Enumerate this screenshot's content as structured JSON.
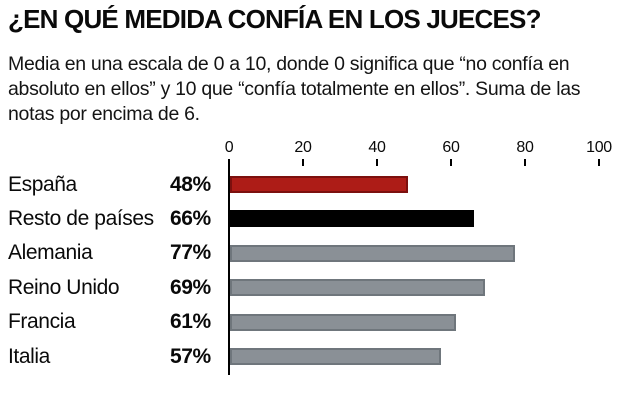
{
  "header": {
    "title": "¿EN QUÉ MEDIDA CONFÍA EN LOS JUECES?",
    "subtitle": "Media en una escala de 0 a 10, donde 0 significa que “no confía en absoluto en ellos” y 10 que “confía totalmente en ellos”. Suma de las notas por encima de 6."
  },
  "chart_data": {
    "type": "bar",
    "orientation": "horizontal",
    "title": "¿EN QUÉ MEDIDA CONFÍA EN LOS JUECES?",
    "categories": [
      "España",
      "Resto de países",
      "Alemania",
      "Reino Unido",
      "Francia",
      "Italia"
    ],
    "values": [
      48,
      66,
      77,
      69,
      61,
      57
    ],
    "value_labels": [
      "48%",
      "66%",
      "77%",
      "69%",
      "61%",
      "57%"
    ],
    "xlim": [
      0,
      100
    ],
    "x_ticks": [
      "0",
      "20",
      "40",
      "60",
      "80",
      "100"
    ],
    "grid": false,
    "legend": "none",
    "bar_fills": [
      "#ad1c17",
      "#000000",
      "#8a9096",
      "#8a9096",
      "#8a9096",
      "#8a9096"
    ],
    "bar_borders": [
      "#7c100e",
      "#000000",
      "#6f767c",
      "#6f767c",
      "#6f767c",
      "#6f767c"
    ]
  },
  "colors": {
    "background": "#ffffff",
    "text": "#0a0a0a",
    "axis": "#000000",
    "highlight_red": "#ad1c17",
    "highlight_black": "#000000",
    "bar_gray": "#8a9096"
  }
}
